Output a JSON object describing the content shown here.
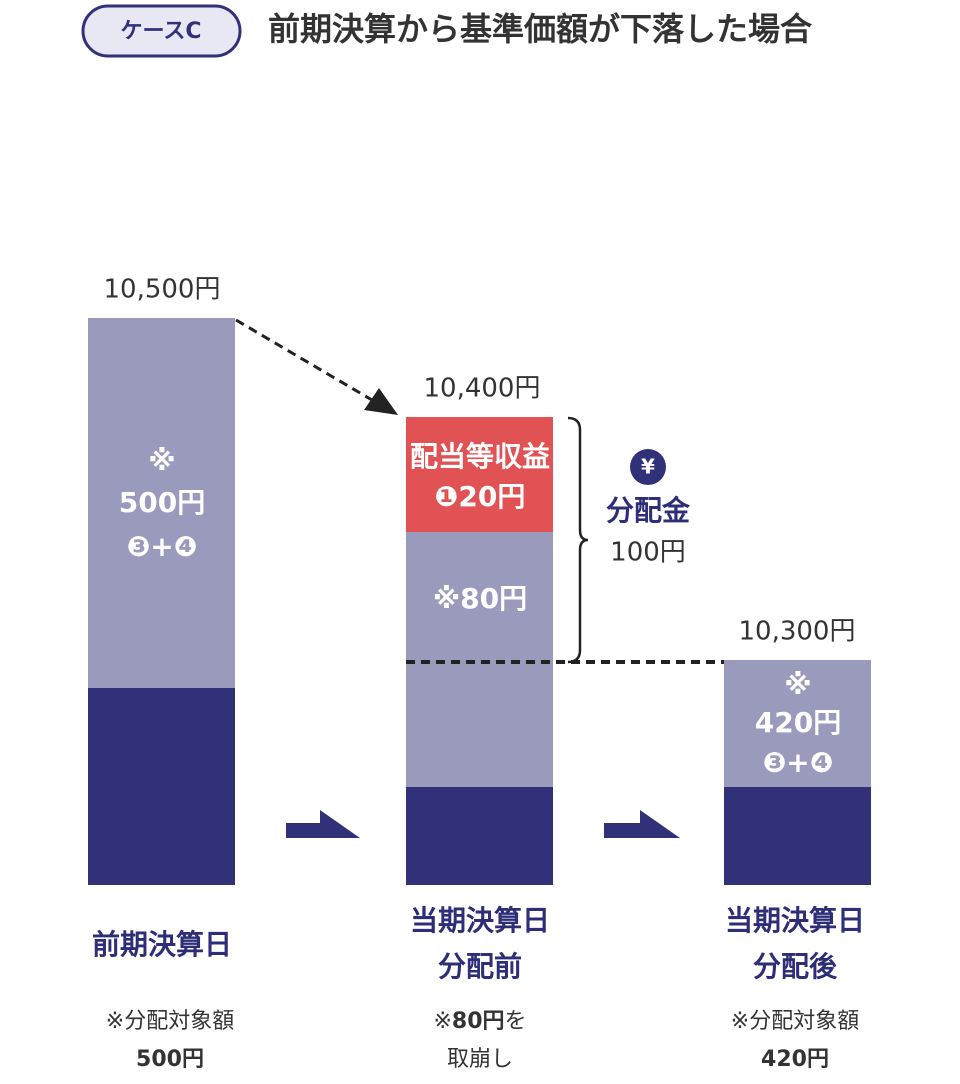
{
  "header": {
    "badge": "ケースC",
    "title": "前期決算から基準価額が下落した場合"
  },
  "columns": [
    {
      "price": "10,500円",
      "mark": "※",
      "amount": "500円",
      "formula": "❸+❹",
      "label": [
        "前期決算日"
      ],
      "note": "※分配対象額",
      "note_amount": "500円"
    },
    {
      "price": "10,400円",
      "income_title": "配当等収益",
      "income_amount": "❶20円",
      "drawdown": "※80円",
      "label": [
        "当期決算日",
        "分配前"
      ],
      "note_parts": [
        "※",
        "80円",
        "を"
      ],
      "note_line2": "取崩し"
    },
    {
      "price": "10,300円",
      "mark": "※",
      "amount": "420円",
      "formula": "❸+❹",
      "label": [
        "当期決算日",
        "分配後"
      ],
      "note": "※分配対象額",
      "note_amount": "420円"
    }
  ],
  "distribution": {
    "icon": "¥",
    "title": "分配金",
    "amount": "100円"
  }
}
